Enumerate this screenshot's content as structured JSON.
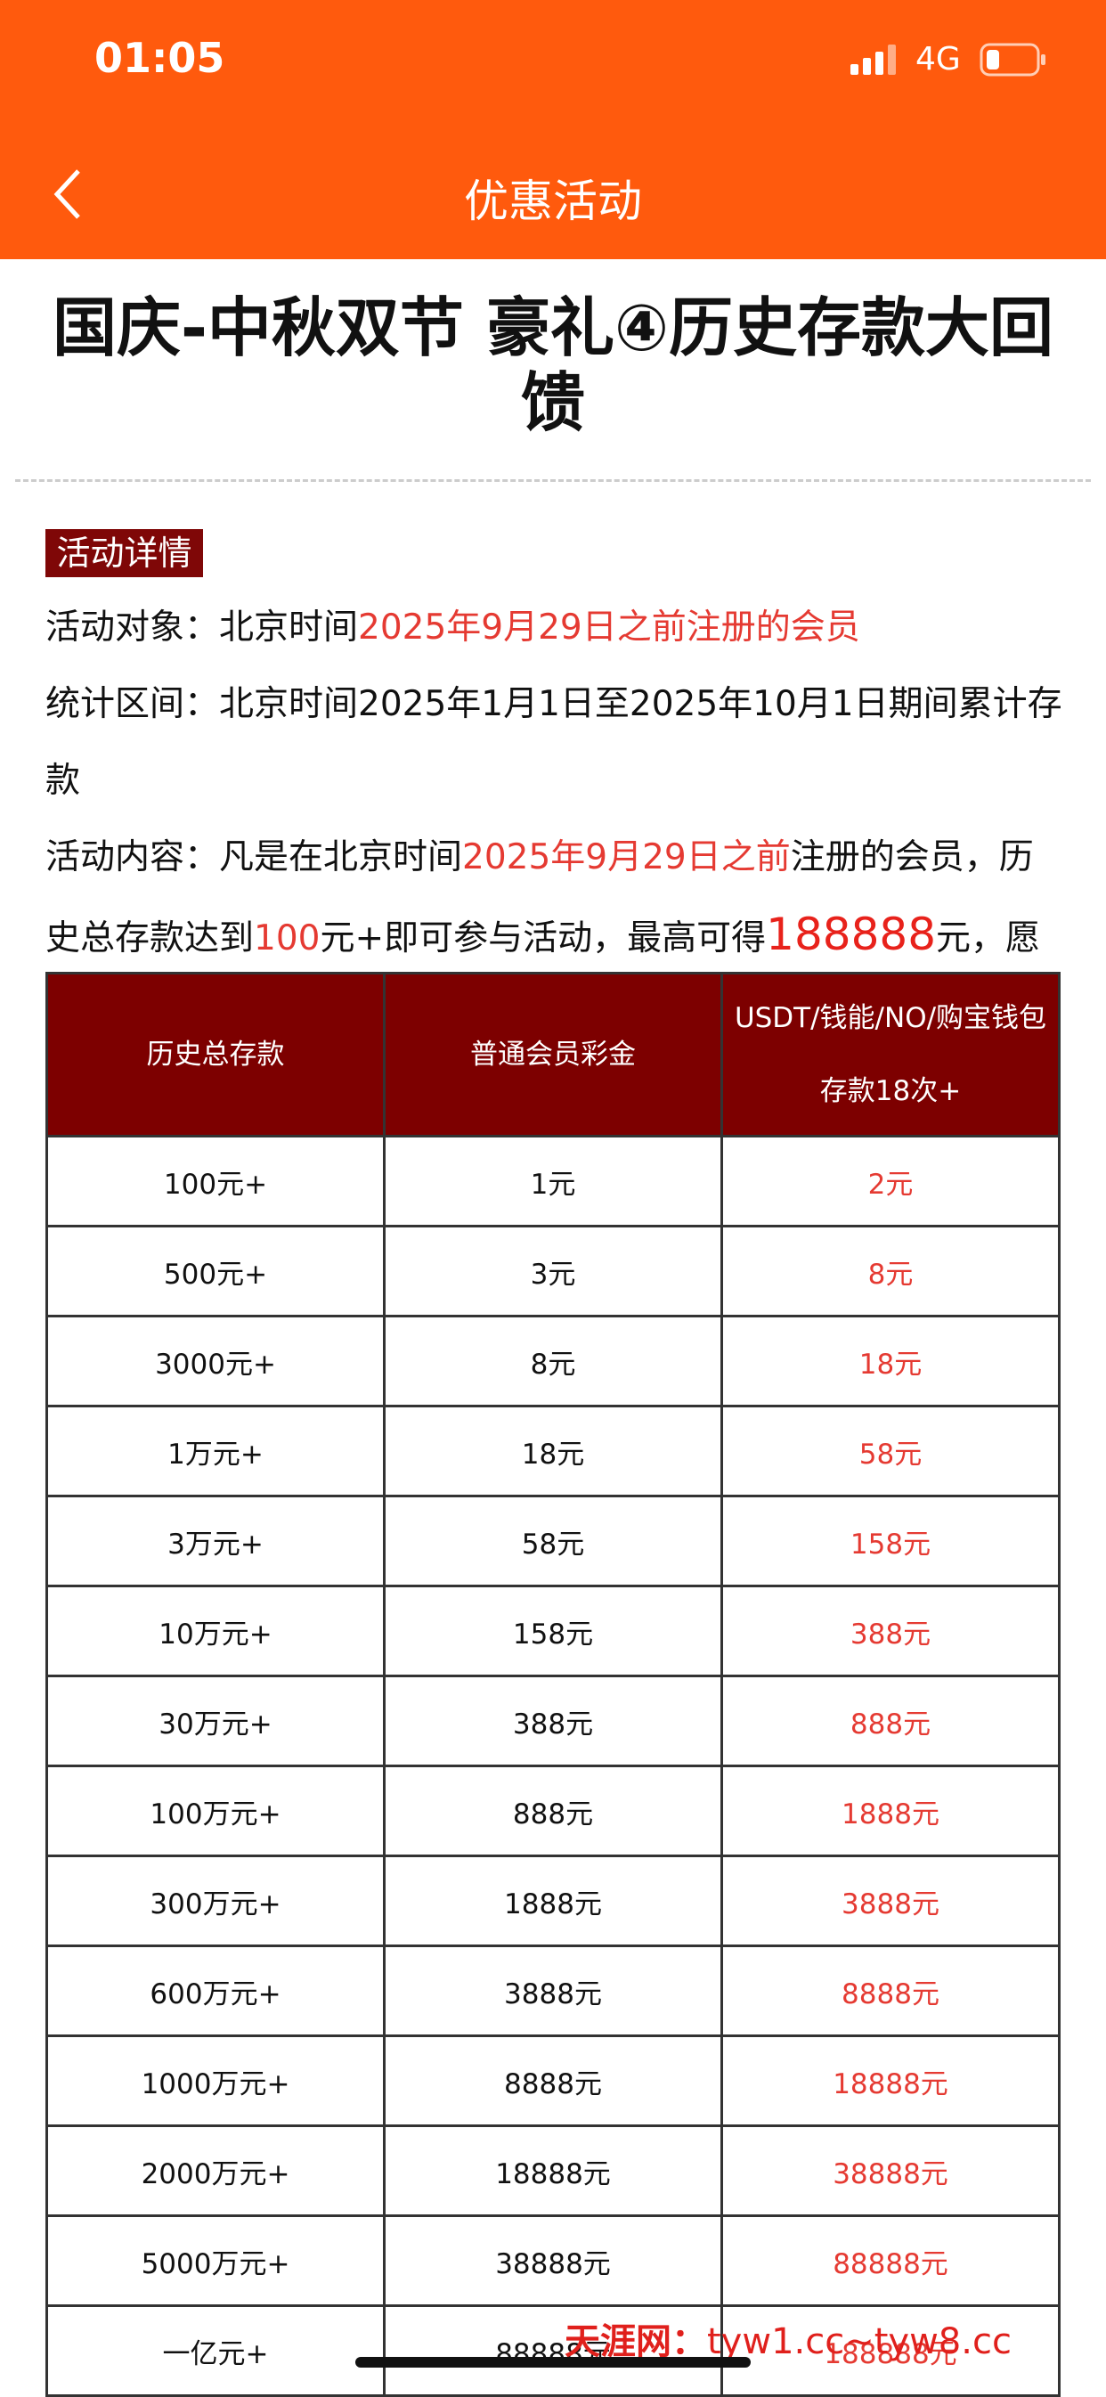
{
  "status_bar": {
    "time": "01:05",
    "network": "4G"
  },
  "nav": {
    "title": "优惠活动"
  },
  "article": {
    "title": "国庆-中秋双节 豪礼④历史存款大回馈",
    "section_label": "活动详情",
    "paragraphs": [
      [
        {
          "text": "活动对象：北京时间",
          "emphasis": "none"
        },
        {
          "text": "2025年9月29日之前注册的会员",
          "emphasis": "red"
        }
      ],
      [
        {
          "text": "统计区间：北京时间2025年1月1日至2025年10月1日期间累计存款",
          "emphasis": "none"
        }
      ],
      [
        {
          "text": "活动内容：凡是在北京时间",
          "emphasis": "none"
        },
        {
          "text": "2025年9月29日之前",
          "emphasis": "red"
        },
        {
          "text": "注册的会员，历史总存款达到",
          "emphasis": "none"
        },
        {
          "text": "100",
          "emphasis": "red"
        },
        {
          "text": "元+即可参与活动，最高可得",
          "emphasis": "none"
        },
        {
          "text": "188888",
          "emphasis": "red-large"
        },
        {
          "text": "元，愿您能在节日里，收获满满！",
          "emphasis": "none"
        }
      ]
    ]
  },
  "table": {
    "headers": [
      "历史总存款",
      "普通会员彩金",
      [
        "USDT/钱能/NO/购宝钱包",
        "存款18次+"
      ]
    ],
    "rows": [
      [
        "100元+",
        "1元",
        "2元"
      ],
      [
        "500元+",
        "3元",
        "8元"
      ],
      [
        "3000元+",
        "8元",
        "18元"
      ],
      [
        "1万元+",
        "18元",
        "58元"
      ],
      [
        "3万元+",
        "58元",
        "158元"
      ],
      [
        "10万元+",
        "158元",
        "388元"
      ],
      [
        "30万元+",
        "388元",
        "888元"
      ],
      [
        "100万元+",
        "888元",
        "1888元"
      ],
      [
        "300万元+",
        "1888元",
        "3888元"
      ],
      [
        "600万元+",
        "3888元",
        "8888元"
      ],
      [
        "1000万元+",
        "8888元",
        "18888元"
      ],
      [
        "2000万元+",
        "18888元",
        "38888元"
      ],
      [
        "5000万元+",
        "38888元",
        "88888元"
      ],
      [
        "一亿元+",
        "88888元",
        "188888元"
      ]
    ]
  },
  "watermark": {
    "site": "天涯网：",
    "urls": "tyw1.cc~tyw8.cc"
  }
}
